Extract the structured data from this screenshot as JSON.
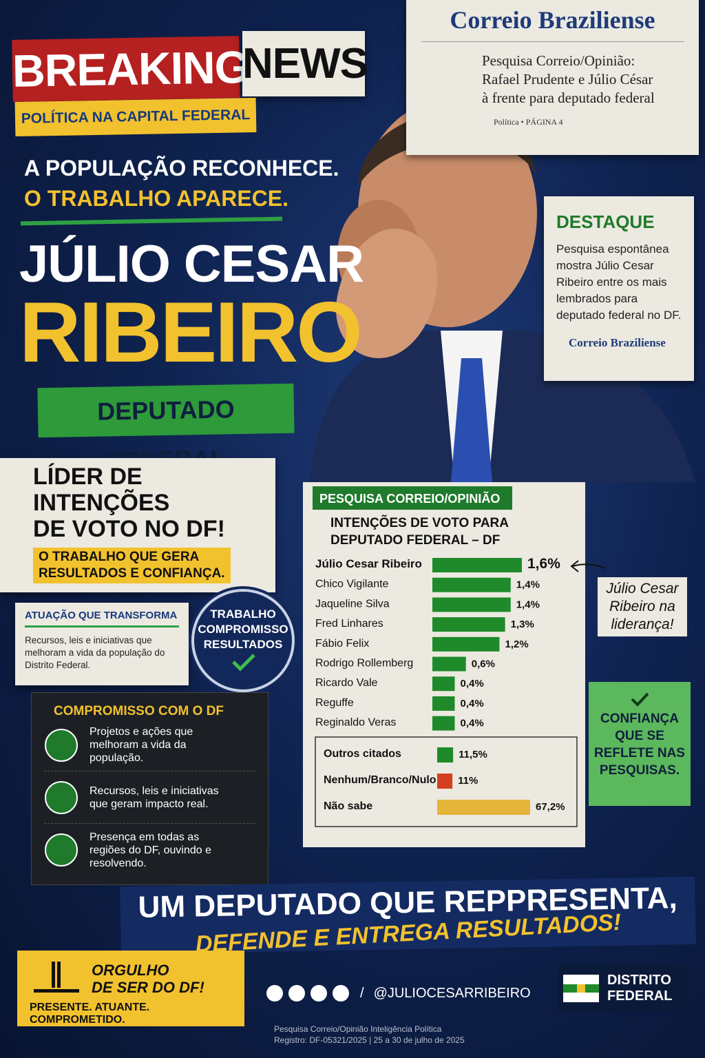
{
  "header": {
    "breaking": "BREAKING",
    "news": "NEWS",
    "section": "POLÍTICA NA CAPITAL FEDERAL"
  },
  "newspaper": {
    "masthead": "Correio Braziliense",
    "headline": [
      "Pesquisa Correio/Opinião:",
      "Rafael Prudente e Júlio César",
      "à frente para deputado federal"
    ],
    "section": "Política • PÁGINA 4"
  },
  "tagline": [
    "A POPULAÇÃO RECONHECE.",
    "O TRABALHO APARECE."
  ],
  "name": {
    "first": "JÚLIO CESAR",
    "last": "RIBEIRO",
    "role": "DEPUTADO FEDERAL"
  },
  "highlight": {
    "title": "DESTAQUE",
    "text": "Pesquisa espontânea mostra Júlio Cesar Ribeiro entre os mais lembrados para deputado federal no DF.",
    "source": "Correio Braziliense"
  },
  "leader": {
    "title": [
      "LÍDER DE INTENÇÕES",
      "DE VOTO NO DF!"
    ],
    "subtitle": [
      "O TRABALHO QUE GERA",
      "RESULTADOS E CONFIANÇA."
    ]
  },
  "impact": {
    "title": "ATUAÇÃO QUE TRANSFORMA",
    "text": "Recursos, leis e iniciativas que melhoram a vida da população do Distrito Federal."
  },
  "seal": [
    "TRABALHO",
    "COMPROMISSO",
    "RESULTADOS"
  ],
  "commitment": {
    "title": "COMPROMISSO COM O DF",
    "items": [
      "Projetos e ações que melhoram a vida da população.",
      "Recursos, leis e iniciativas que geram impacto real.",
      "Presença em todas as regiões do DF, ouvindo e resolvendo."
    ]
  },
  "chart_data": [
    {
      "type": "bar",
      "label": "PESQUISA CORREIO/OPINIÃO",
      "title": [
        "INTENÇÕES DE VOTO PARA",
        "DEPUTADO FEDERAL – DF"
      ],
      "categories": [
        "Júlio Cesar Ribeiro",
        "Chico Vigilante",
        "Jaqueline Silva",
        "Fred Linhares",
        "Fábio Felix",
        "Rodrigo Rollemberg",
        "Ricardo Vale",
        "Reguffe",
        "Reginaldo Veras"
      ],
      "values": [
        1.6,
        1.4,
        1.4,
        1.3,
        1.2,
        0.6,
        0.4,
        0.4,
        0.4
      ],
      "value_labels": [
        "1,6%",
        "1,4%",
        "1,4%",
        "1,3%",
        "1,2%",
        "0,6%",
        "0,4%",
        "0,4%",
        "0,4%"
      ],
      "color": "#1f8a2a",
      "annotation": [
        "Júlio Cesar",
        "Ribeiro na",
        "liderança!"
      ]
    },
    {
      "type": "bar",
      "categories": [
        "Outros citados",
        "Nenhum/Branco/Nulo",
        "Não sabe"
      ],
      "values": [
        11.5,
        11,
        67.2
      ],
      "value_labels": [
        "11,5%",
        "11%",
        "67,2%"
      ],
      "colors": [
        "#1f8a2a",
        "#d2401f",
        "#e5b53a"
      ]
    }
  ],
  "confidence": [
    "CONFIANÇA",
    "QUE SE",
    "REFLETE NAS",
    "PESQUISAS."
  ],
  "banner": [
    "UM DEPUTADO QUE REPPRESENTA,",
    "DEFENDE E ENTREGA RESULTADOS!"
  ],
  "pride": {
    "title": [
      "ORGULHO",
      "DE SER DO DF!"
    ],
    "motto": "PRESENTE. ATUANTE. COMPROMETIDO."
  },
  "social": {
    "separator": "/",
    "handle": "@JULIOCESARRIBEIRO"
  },
  "region": [
    "DISTRITO",
    "FEDERAL"
  ],
  "footer": [
    "Pesquisa Correio/Opinião Inteligência Política",
    "Registro: DF-05321/2025 | 25 a 30 de julho de 2025"
  ]
}
